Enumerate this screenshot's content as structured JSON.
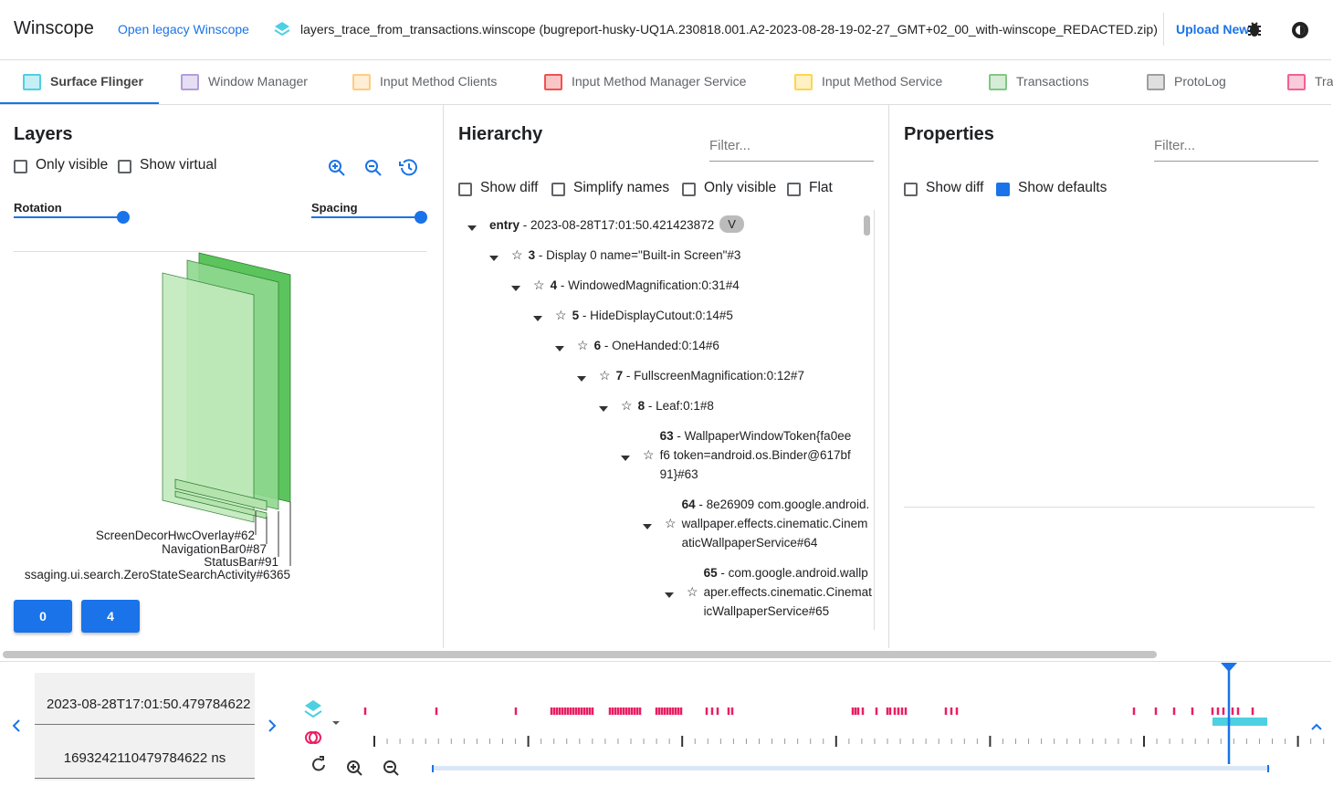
{
  "header": {
    "title": "Winscope",
    "legacy_link": "Open legacy Winscope",
    "file": "layers_trace_from_transactions.winscope (bugreport-husky-UQ1A.230818.001.A2-2023-08-28-19-02-27_GMT+02_00_with-winscope_REDACTED.zip)",
    "upload": "Upload New"
  },
  "tabs": [
    "Surface Flinger",
    "Window Manager",
    "Input Method Clients",
    "Input Method Manager Service",
    "Input Method Service",
    "Transactions",
    "ProtoLog",
    "Tra"
  ],
  "layers": {
    "title": "Layers",
    "options": [
      "Only visible",
      "Show virtual"
    ],
    "rotation": "Rotation",
    "spacing": "Spacing",
    "labels": [
      "ScreenDecorHwcOverlay#62",
      "NavigationBar0#87",
      "StatusBar#91",
      "ssaging.ui.search.ZeroStateSearchActivity#6365"
    ],
    "buttons": [
      "0",
      "4"
    ]
  },
  "hierarchy": {
    "title": "Hierarchy",
    "filter": "Filter...",
    "options": [
      "Show diff",
      "Simplify names",
      "Only visible",
      "Flat"
    ],
    "nodes": [
      {
        "id": "entry",
        "name": "- 2023-08-28T17:01:50.421423872",
        "badge": "V"
      },
      {
        "id": "3",
        "name": "- Display 0 name=\"Built-in Screen\"#3"
      },
      {
        "id": "4",
        "name": "- WindowedMagnification:0:31#4"
      },
      {
        "id": "5",
        "name": "- HideDisplayCutout:0:14#5"
      },
      {
        "id": "6",
        "name": "- OneHanded:0:14#6"
      },
      {
        "id": "7",
        "name": "- FullscreenMagnification:0:12#7"
      },
      {
        "id": "8",
        "name": "- Leaf:0:1#8"
      },
      {
        "id": "63",
        "name": "- WallpaperWindowToken{fa0eef6 token=android.os.Binder@617bf91}#63"
      },
      {
        "id": "64",
        "name": "- 8e26909 com.google.android.wallpaper.effects.cinematic.CinematicWallpaperService#64"
      },
      {
        "id": "65",
        "name": "- com.google.android.wallpaper.effects.cinematic.CinematicWallpaperService#65"
      }
    ]
  },
  "properties": {
    "title": "Properties",
    "filter": "Filter...",
    "options": [
      "Show diff",
      "Show defaults"
    ]
  },
  "timeline": {
    "timestamp": "2023-08-28T17:01:50.479784622",
    "ns": "1693242110479784622 ns"
  }
}
